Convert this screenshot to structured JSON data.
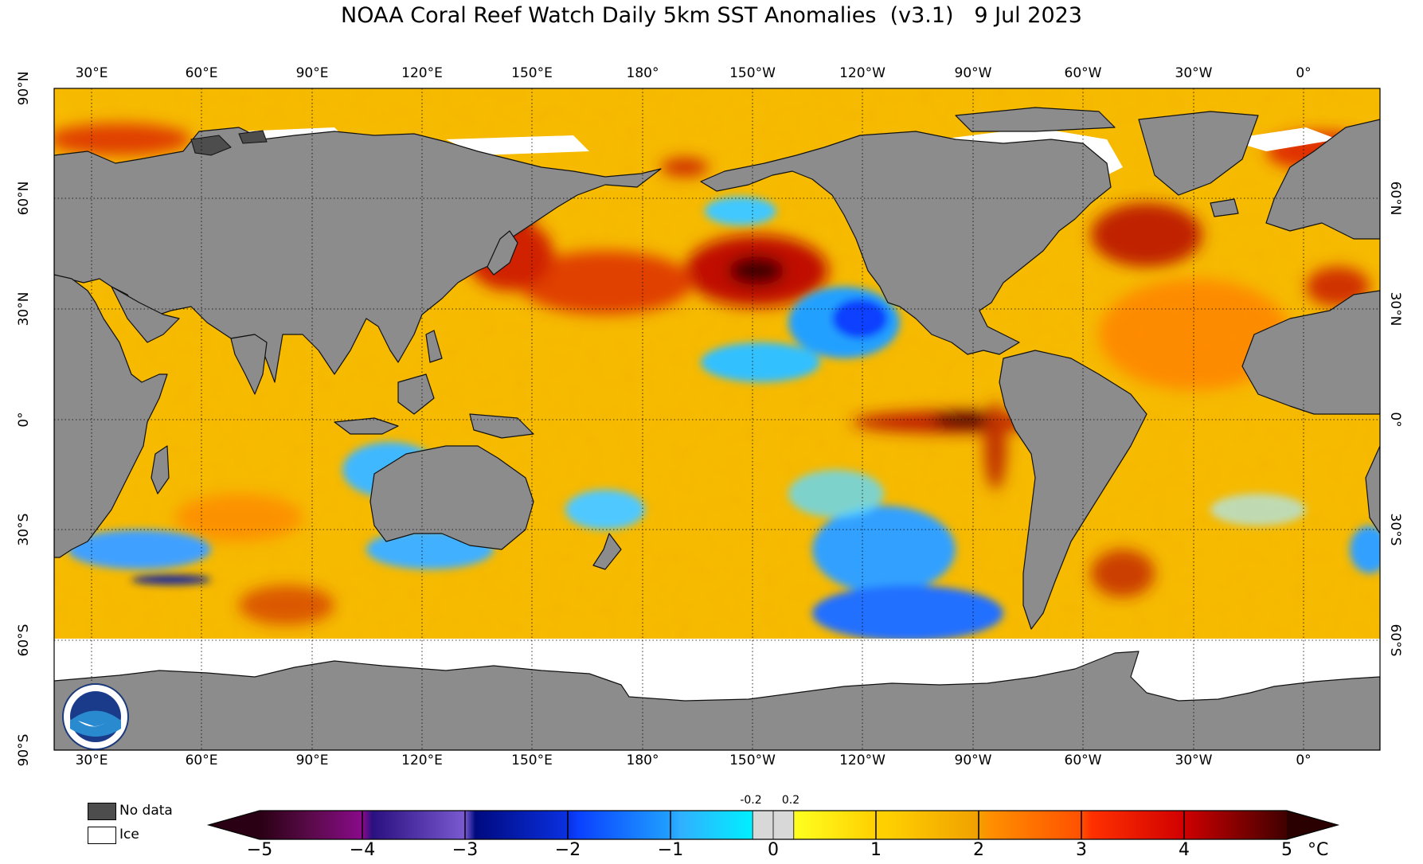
{
  "title": "NOAA Coral Reef Watch Daily 5km SST Anomalies  (v3.1)   9 Jul 2023",
  "map": {
    "lon_labels": [
      "30°E",
      "60°E",
      "90°E",
      "120°E",
      "150°E",
      "180°",
      "150°W",
      "120°W",
      "90°W",
      "60°W",
      "30°W",
      "0°"
    ],
    "lat_labels_left": [
      "90°N",
      "60°N",
      "30°N",
      "0°",
      "30°S",
      "60°S",
      "90°S"
    ],
    "lat_labels_right": [
      "60°N",
      "30°N",
      "0°",
      "30°S",
      "60°S"
    ],
    "colors": {
      "land": "#8c8c8c",
      "no_data": "#4d4d4d",
      "ice": "#ffffff",
      "base_anomaly": "#f7c000",
      "grid": "#000000"
    },
    "logo_icon": "noaa-logo"
  },
  "legend": {
    "no_data_label": "No data",
    "ice_label": "Ice",
    "no_data_color": "#4d4d4d",
    "ice_color": "#ffffff"
  },
  "colorbar": {
    "tick_labels": [
      "−5",
      "−4",
      "−3",
      "−2",
      "−1",
      "0",
      "1",
      "2",
      "3",
      "4",
      "5"
    ],
    "small_labels": [
      "-0.2",
      "0.2"
    ],
    "unit": "°C",
    "range": [
      -5,
      5
    ],
    "stops": [
      {
        "v": -5,
        "c": "#2a0014"
      },
      {
        "v": -4.5,
        "c": "#5a0a4a"
      },
      {
        "v": -4,
        "c": "#8a0a8a"
      },
      {
        "v": -3.9,
        "c": "#2a1080"
      },
      {
        "v": -3,
        "c": "#7a5ad0"
      },
      {
        "v": -2.9,
        "c": "#000a80"
      },
      {
        "v": -2,
        "c": "#0a30e0"
      },
      {
        "v": -1.9,
        "c": "#0a40ff"
      },
      {
        "v": -1,
        "c": "#20a0ff"
      },
      {
        "v": -0.9,
        "c": "#30b0ff"
      },
      {
        "v": -0.2,
        "c": "#00f0ff"
      },
      {
        "v": -0.2,
        "c": "#d8d8d8"
      },
      {
        "v": 0.2,
        "c": "#d8d8d8"
      },
      {
        "v": 0.2,
        "c": "#ffff20"
      },
      {
        "v": 1,
        "c": "#ffd000"
      },
      {
        "v": 1.1,
        "c": "#ffd000"
      },
      {
        "v": 2,
        "c": "#f0a000"
      },
      {
        "v": 2.1,
        "c": "#ff9000"
      },
      {
        "v": 3,
        "c": "#ff5000"
      },
      {
        "v": 3.1,
        "c": "#ff3000"
      },
      {
        "v": 4,
        "c": "#d00000"
      },
      {
        "v": 4.1,
        "c": "#c00000"
      },
      {
        "v": 5,
        "c": "#400000"
      }
    ]
  }
}
